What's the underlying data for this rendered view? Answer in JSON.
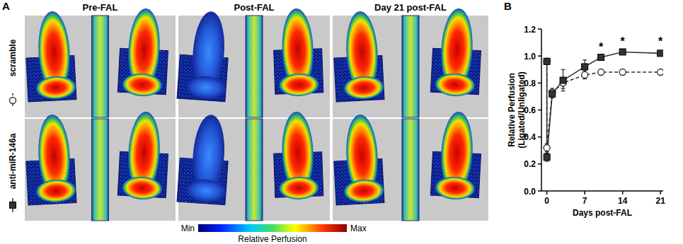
{
  "chart_data": {
    "type": "line",
    "xlabel": "Days post-FAL",
    "ylabel": [
      "Relative Perfusion",
      "(Ligated/Unligated)"
    ],
    "x": [
      0,
      0,
      1,
      3,
      7,
      10,
      14,
      21
    ],
    "series": [
      {
        "name": "scramble",
        "color": "#333333",
        "marker": "open-circle",
        "line_style": "dashed",
        "values": [
          0.96,
          0.32,
          0.73,
          0.8,
          0.86,
          0.88,
          0.88,
          0.88
        ],
        "errors": [
          0.02,
          0.03,
          0.03,
          0.04,
          0.03,
          0.02,
          0.02,
          0.02
        ]
      },
      {
        "name": "anti-miR-146a",
        "color": "#333333",
        "marker": "square",
        "line_style": "solid",
        "values": [
          0.96,
          0.25,
          0.72,
          0.82,
          0.92,
          0.99,
          1.03,
          1.02
        ],
        "errors": [
          0.02,
          0.03,
          0.03,
          0.08,
          0.05,
          0.02,
          0.02,
          0.02
        ]
      }
    ],
    "xlim": [
      -1,
      21.5
    ],
    "xticks": [
      0,
      7,
      14,
      21
    ],
    "ylim": [
      0,
      1.2
    ],
    "yticks": [
      {
        "value": 0,
        "label": "0.0"
      },
      {
        "value": 0.2,
        "label": "0.2"
      },
      {
        "value": 0.4,
        "label": "0.4"
      },
      {
        "value": 0.6,
        "label": "0.6"
      },
      {
        "value": 0.8,
        "label": "0.8"
      },
      {
        "value": 1,
        "label": "1.0"
      },
      {
        "value": 1.2,
        "label": "1.2"
      }
    ],
    "annotations": [
      {
        "x": 10,
        "y": 1.08,
        "text": "*"
      },
      {
        "x": 14,
        "y": 1.12,
        "text": "*"
      },
      {
        "x": 21,
        "y": 1.12,
        "text": "*"
      }
    ],
    "grid": false
  },
  "figure": {
    "panel_labels": [
      "A",
      "B"
    ],
    "columns": [
      "Pre-FAL",
      "Post-FAL",
      "Day 21 post-FAL"
    ],
    "colorbar": {
      "min_label": "Min",
      "max_label": "Max",
      "label": "Relative Perfusion"
    }
  }
}
